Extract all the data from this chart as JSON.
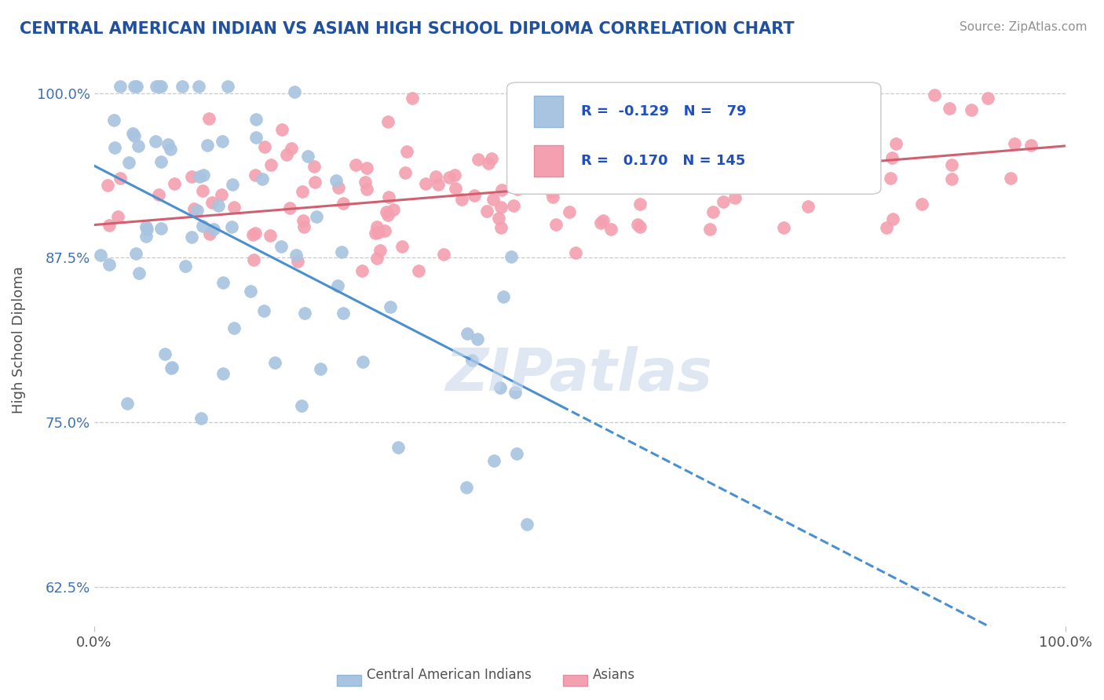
{
  "title": "CENTRAL AMERICAN INDIAN VS ASIAN HIGH SCHOOL DIPLOMA CORRELATION CHART",
  "source": "Source: ZipAtlas.com",
  "ylabel": "High School Diploma",
  "xlim": [
    0.0,
    1.0
  ],
  "ylim": [
    0.595,
    1.03
  ],
  "yticks": [
    0.625,
    0.75,
    0.875,
    1.0
  ],
  "ytick_labels": [
    "62.5%",
    "75.0%",
    "87.5%",
    "100.0%"
  ],
  "xtick_labels": [
    "0.0%",
    "100.0%"
  ],
  "r1": -0.129,
  "n1": 79,
  "r2": 0.17,
  "n2": 145,
  "blue_color": "#a8c4e0",
  "pink_color": "#f4a0b0",
  "blue_line_color": "#4a90d0",
  "pink_line_color": "#d06070",
  "title_color": "#2050a0",
  "legend_color": "#2050c0",
  "axis_color": "#4070b0",
  "watermark": "ZIPatlas",
  "background_color": "#ffffff",
  "grid_color": "#c8c8c8",
  "blue_trend_start_y": 0.945,
  "blue_trend_slope": -0.38,
  "pink_trend_start_y": 0.9,
  "pink_trend_slope": 0.06
}
